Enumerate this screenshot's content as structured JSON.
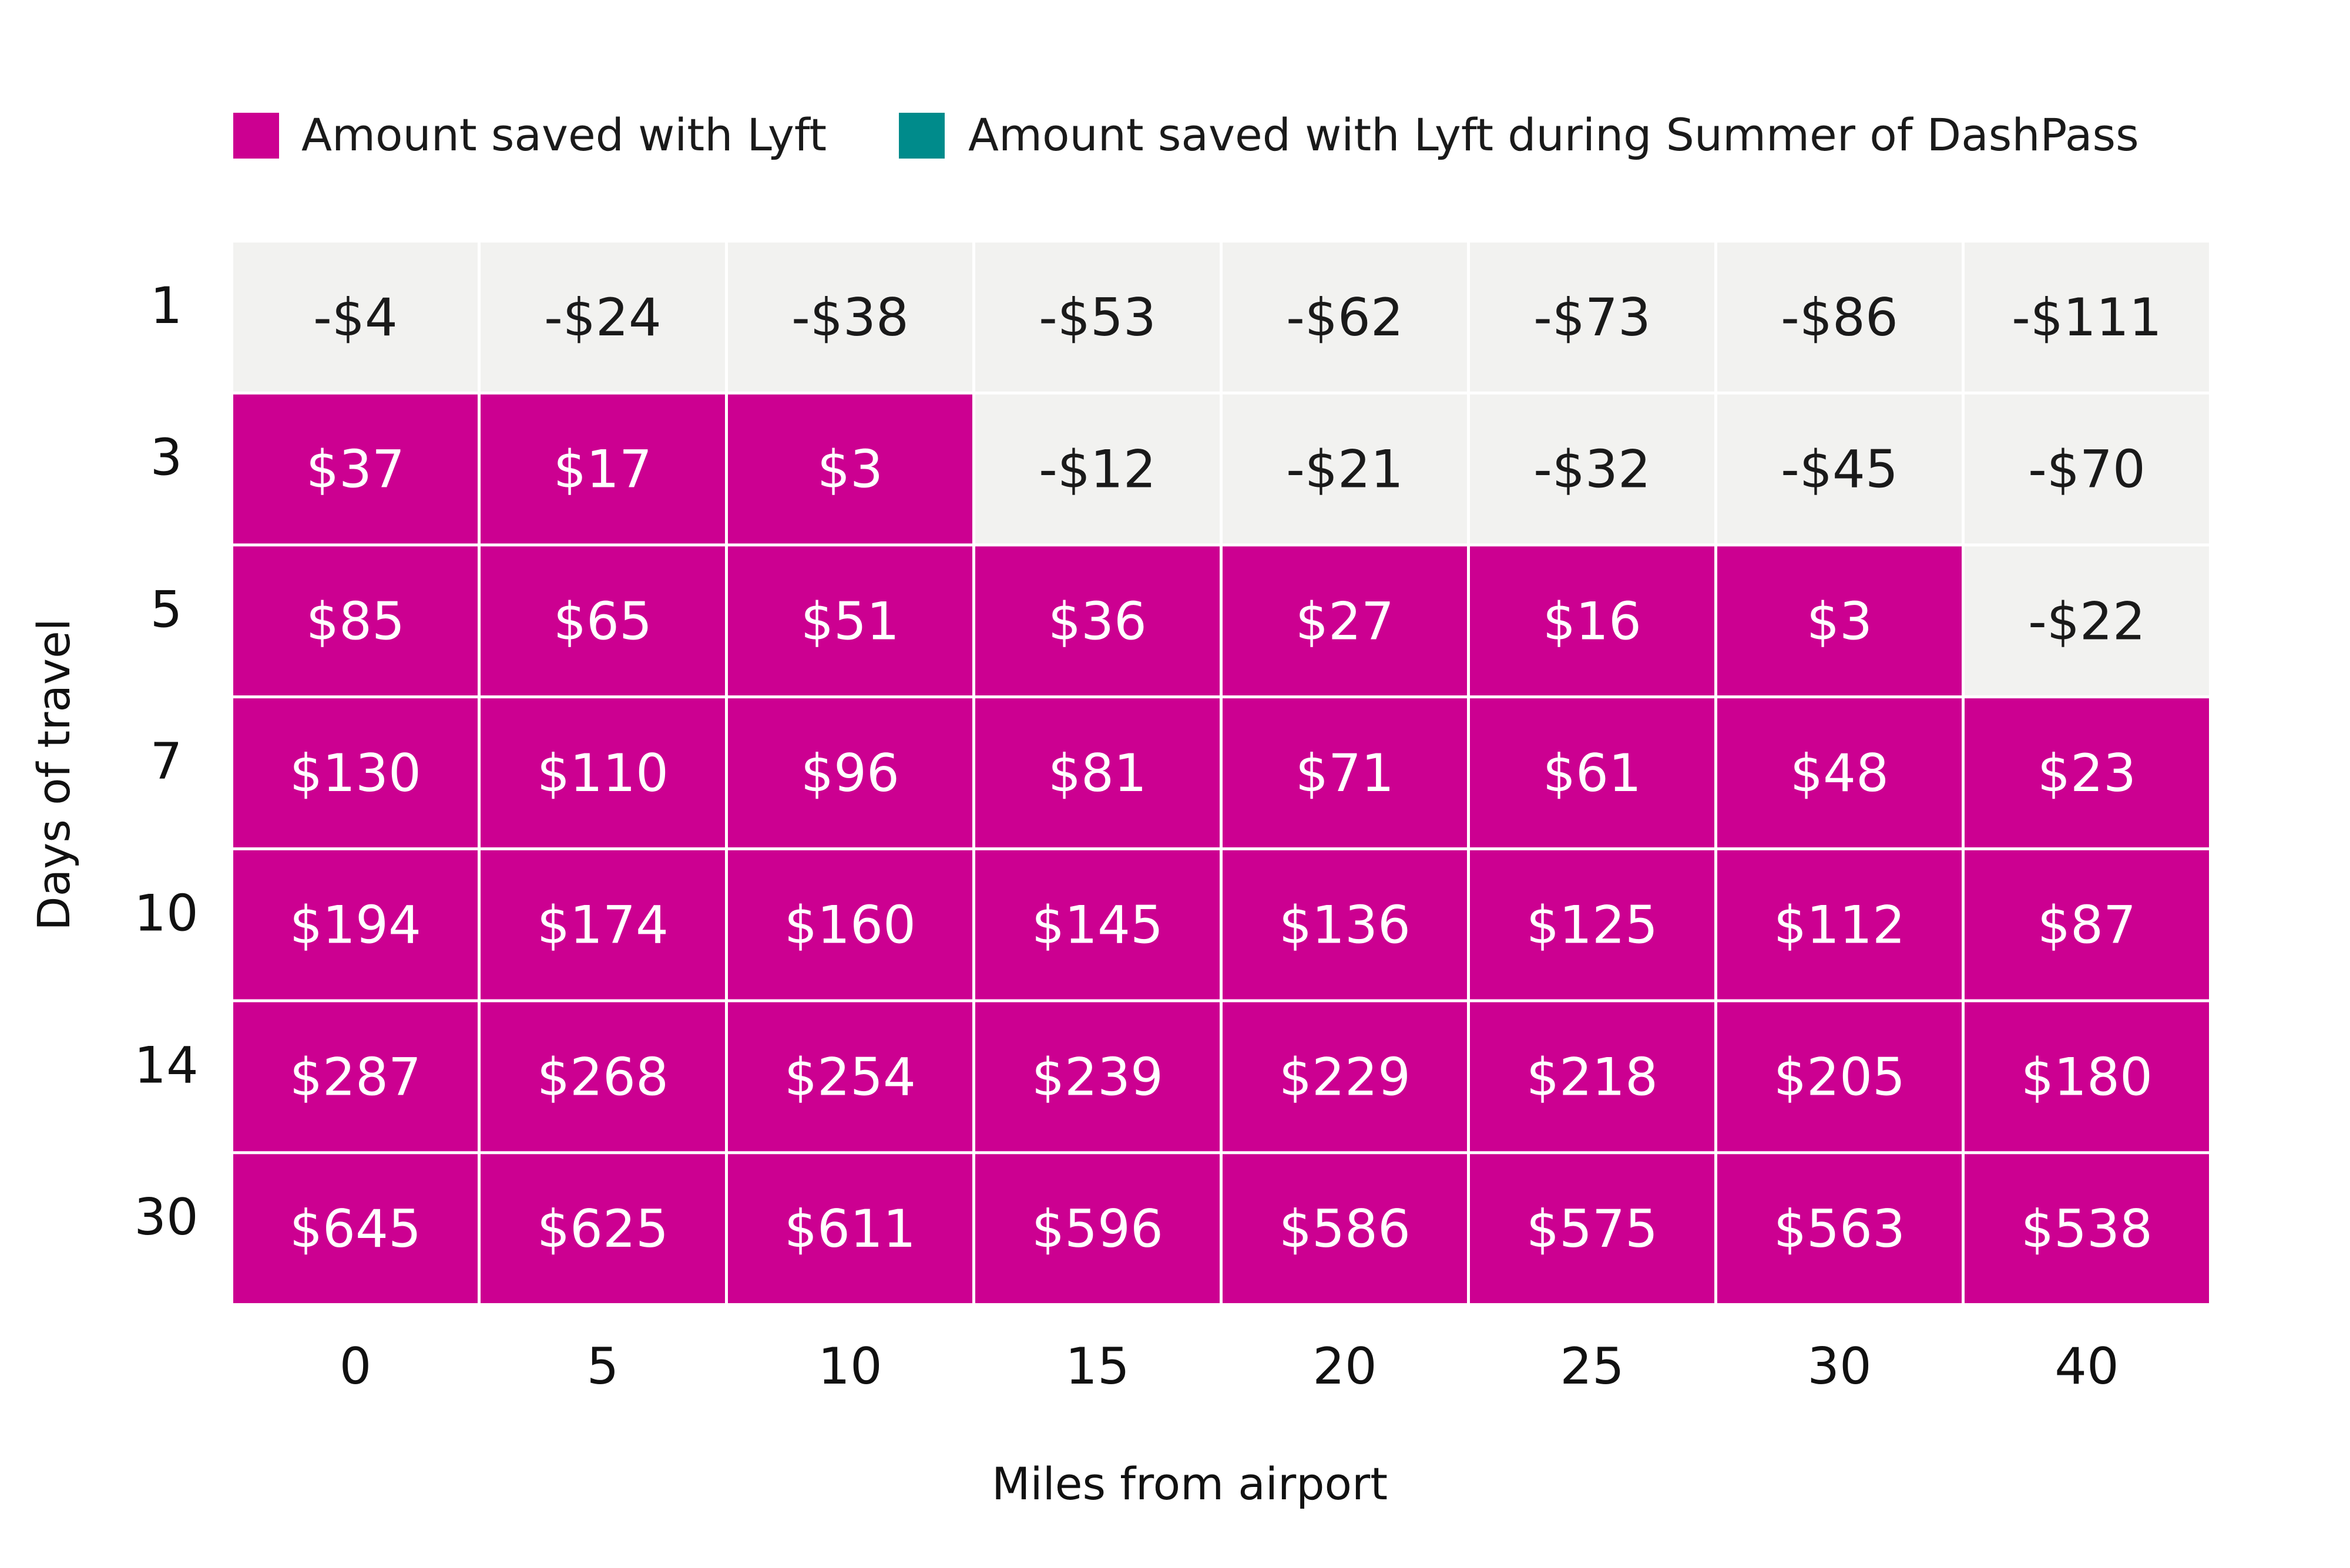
{
  "chart_data": {
    "type": "heatmap",
    "legend": [
      {
        "label": "Amount saved with Lyft",
        "color": "#cc0091"
      },
      {
        "label": "Amount saved with Lyft during Summer of DashPass",
        "color": "#008b8b"
      }
    ],
    "legend_position": "top-left",
    "xlabel": "Miles from airport",
    "ylabel": "Days of travel",
    "x": [
      "0",
      "5",
      "10",
      "15",
      "20",
      "25",
      "30",
      "40"
    ],
    "y": [
      "1",
      "3",
      "5",
      "7",
      "10",
      "14",
      "30"
    ],
    "values": [
      [
        -4,
        -24,
        -38,
        -53,
        -62,
        -73,
        -86,
        -111
      ],
      [
        37,
        17,
        3,
        -12,
        -21,
        -32,
        -45,
        -70
      ],
      [
        85,
        65,
        51,
        36,
        27,
        16,
        3,
        -22
      ],
      [
        130,
        110,
        96,
        81,
        71,
        61,
        48,
        23
      ],
      [
        194,
        174,
        160,
        145,
        136,
        125,
        112,
        87
      ],
      [
        287,
        268,
        254,
        239,
        229,
        218,
        205,
        180
      ],
      [
        645,
        625,
        611,
        596,
        586,
        575,
        563,
        538
      ]
    ],
    "cell_labels": [
      [
        "-$4",
        "-$24",
        "-$38",
        "-$53",
        "-$62",
        "-$73",
        "-$86",
        "-$111"
      ],
      [
        "$37",
        "$17",
        "$3",
        "-$12",
        "-$21",
        "-$32",
        "-$45",
        "-$70"
      ],
      [
        "$85",
        "$65",
        "$51",
        "$36",
        "$27",
        "$16",
        "$3",
        "-$22"
      ],
      [
        "$130",
        "$110",
        "$96",
        "$81",
        "$71",
        "$61",
        "$48",
        "$23"
      ],
      [
        "$194",
        "$174",
        "$160",
        "$145",
        "$136",
        "$125",
        "$112",
        "$87"
      ],
      [
        "$287",
        "$268",
        "$254",
        "$239",
        "$229",
        "$218",
        "$205",
        "$180"
      ],
      [
        "$645",
        "$625",
        "$611",
        "$596",
        "$586",
        "$575",
        "$563",
        "$538"
      ]
    ],
    "colors": {
      "positive": "#cc0091",
      "non_positive": "#f2f2f0",
      "positive_text": "#ffffff",
      "non_positive_text": "#1a1a1a",
      "grid_line": "#ffffff"
    }
  }
}
